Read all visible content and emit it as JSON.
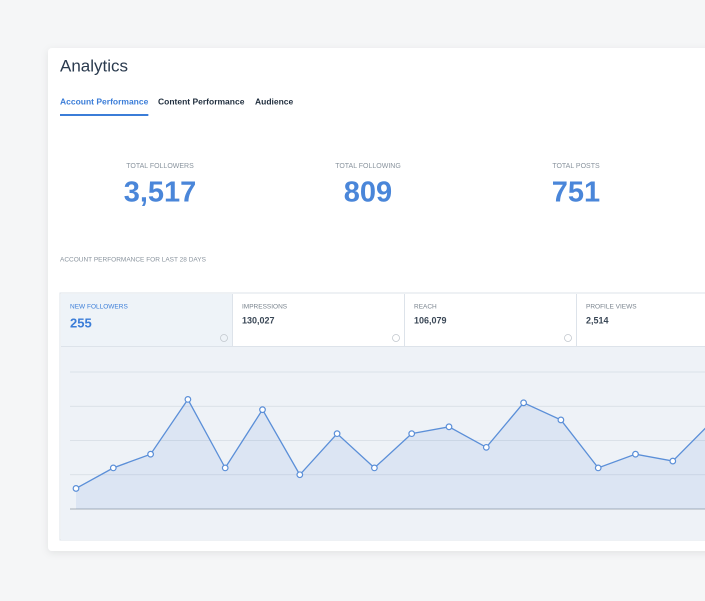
{
  "header": {
    "title": "Analytics"
  },
  "tabs": [
    "Account Performance",
    "Content Performance",
    "Audience"
  ],
  "stats": [
    {
      "label": "TOTAL FOLLOWERS",
      "value": "3,517"
    },
    {
      "label": "TOTAL FOLLOWING",
      "value": "809"
    },
    {
      "label": "TOTAL POSTS",
      "value": "751"
    }
  ],
  "section_label": "ACCOUNT PERFORMANCE FOR LAST 28 DAYS",
  "metrics": [
    {
      "label": "NEW FOLLOWERS",
      "value": "255"
    },
    {
      "label": "IMPRESSIONS",
      "value": "130,027"
    },
    {
      "label": "REACH",
      "value": "106,079"
    },
    {
      "label": "PROFILE VIEWS",
      "value": "2,514"
    }
  ],
  "chart_data": {
    "type": "line",
    "categories": [
      null,
      null,
      null,
      null,
      null,
      null,
      null,
      null,
      null,
      null,
      null,
      null,
      null,
      null,
      null,
      null,
      null,
      null
    ],
    "values": [
      0.6,
      1.2,
      1.6,
      3.2,
      1.2,
      2.9,
      1.0,
      2.2,
      1.2,
      2.2,
      2.4,
      1.8,
      3.1,
      2.6,
      1.2,
      1.6,
      1.4,
      2.5
    ],
    "color": "#5b8fd8",
    "ylim": [
      0,
      4
    ],
    "yticks": [
      0,
      1,
      2,
      3,
      4
    ],
    "grid": true
  }
}
